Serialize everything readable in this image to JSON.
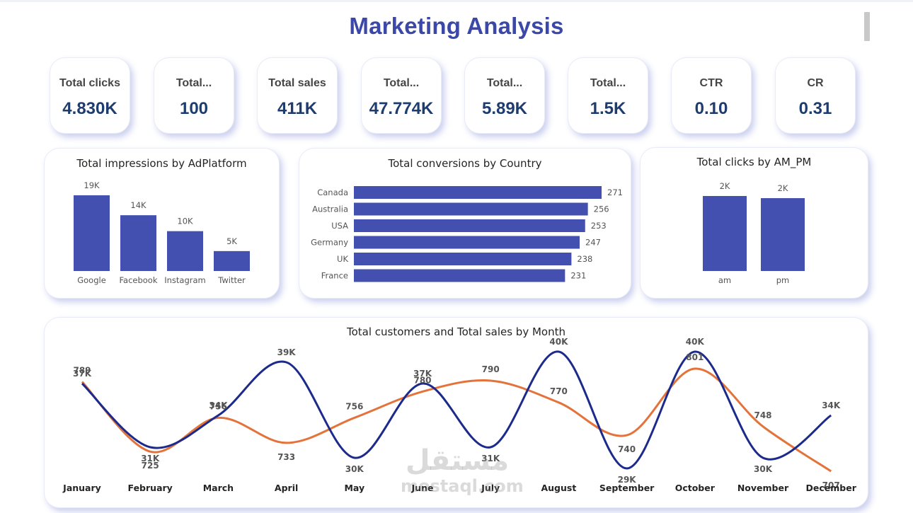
{
  "title": "Marketing Analysis",
  "kpis": [
    {
      "label": "Total clicks",
      "value": "4.830K"
    },
    {
      "label": "Total...",
      "value": "100"
    },
    {
      "label": "Total sales",
      "value": "411K"
    },
    {
      "label": "Total...",
      "value": "47.774K"
    },
    {
      "label": "Total...",
      "value": "5.89K"
    },
    {
      "label": "Total...",
      "value": "1.5K"
    },
    {
      "label": "CTR",
      "value": "0.10"
    },
    {
      "label": "CR",
      "value": "0.31"
    }
  ],
  "chart_data": [
    {
      "type": "bar",
      "title": "Total impressions by AdPlatform",
      "categories": [
        "Google",
        "Facebook",
        "Instagram",
        "Twitter"
      ],
      "values": [
        19000,
        14000,
        10000,
        5000
      ],
      "data_labels": [
        "19K",
        "14K",
        "10K",
        "5K"
      ],
      "color": "#4350b0",
      "ylim": [
        0,
        19000
      ]
    },
    {
      "type": "bar",
      "orientation": "horizontal",
      "title": "Total conversions by Country",
      "categories": [
        "Canada",
        "Australia",
        "USA",
        "Germany",
        "UK",
        "France"
      ],
      "values": [
        271,
        256,
        253,
        247,
        238,
        231
      ],
      "color": "#4350b0",
      "xlim": [
        0,
        271
      ]
    },
    {
      "type": "bar",
      "title": "Total clicks by AM_PM",
      "categories": [
        "am",
        "pm"
      ],
      "values": [
        2450,
        2380
      ],
      "data_labels": [
        "2K",
        "2K"
      ],
      "color": "#4350b0"
    },
    {
      "type": "line",
      "title": "Total customers and Total sales by Month",
      "categories": [
        "January",
        "February",
        "March",
        "April",
        "May",
        "June",
        "July",
        "August",
        "September",
        "October",
        "November",
        "December"
      ],
      "series": [
        {
          "name": "Total customers",
          "color": "#e4733b",
          "values": [
            789,
            725,
            756,
            733,
            756,
            780,
            790,
            770,
            740,
            801,
            748,
            707
          ],
          "labels": [
            "789",
            "725",
            "756",
            "733",
            "756",
            "780",
            "790",
            "770",
            "740",
            "801",
            "748",
            "707"
          ]
        },
        {
          "name": "Total sales",
          "color": "#1c2a8c",
          "values": [
            37000,
            31000,
            34000,
            39000,
            30000,
            37000,
            31000,
            40000,
            29000,
            40000,
            30000,
            34000
          ],
          "labels": [
            "37K",
            "31K",
            "34K",
            "39K",
            "30K",
            "37K",
            "31K",
            "40K",
            "29K",
            "40K",
            "30K",
            "34K"
          ]
        }
      ]
    }
  ],
  "watermark": {
    "arabic": "مستقل",
    "latin": "mostaql.com"
  }
}
